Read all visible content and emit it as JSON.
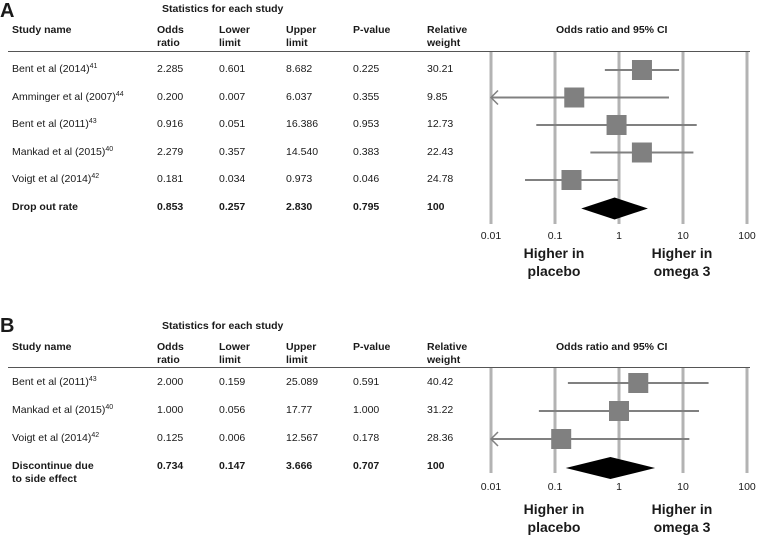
{
  "chart_data": [
    {
      "type": "forest",
      "panel": "A",
      "title": "Statistics for each study",
      "plot_title": "Odds ratio and 95% CI",
      "columns": [
        "Study name",
        "Odds\nratio",
        "Lower\nlimit",
        "Upper\nlimit",
        "P-value",
        "Relative\nweight"
      ],
      "studies": [
        {
          "name": "Bent et al (2014)",
          "ref": "41",
          "or": "2.285",
          "lower": "0.601",
          "upper": "8.682",
          "p": "0.225",
          "weight": "30.21",
          "or_v": 2.285,
          "lo_v": 0.601,
          "hi_v": 8.682
        },
        {
          "name": "Amminger et al (2007)",
          "ref": "44",
          "or": "0.200",
          "lower": "0.007",
          "upper": "6.037",
          "p": "0.355",
          "weight": "9.85",
          "or_v": 0.2,
          "lo_v": 0.007,
          "hi_v": 6.037
        },
        {
          "name": "Bent et al (2011)",
          "ref": "43",
          "or": "0.916",
          "lower": "0.051",
          "upper": "16.386",
          "p": "0.953",
          "weight": "12.73",
          "or_v": 0.916,
          "lo_v": 0.051,
          "hi_v": 16.386
        },
        {
          "name": "Mankad et al (2015)",
          "ref": "40",
          "or": "2.279",
          "lower": "0.357",
          "upper": "14.540",
          "p": "0.383",
          "weight": "22.43",
          "or_v": 2.279,
          "lo_v": 0.357,
          "hi_v": 14.54
        },
        {
          "name": "Voigt et al (2014)",
          "ref": "42",
          "or": "0.181",
          "lower": "0.034",
          "upper": "0.973",
          "p": "0.046",
          "weight": "24.78",
          "or_v": 0.181,
          "lo_v": 0.034,
          "hi_v": 0.973
        }
      ],
      "summary": {
        "name": "Drop out rate",
        "or": "0.853",
        "lower": "0.257",
        "upper": "2.830",
        "p": "0.795",
        "weight": "100",
        "or_v": 0.853,
        "lo_v": 0.257,
        "hi_v": 2.83
      },
      "x_scale": "log",
      "xlim": [
        0.01,
        100
      ],
      "x_ticks": [
        "0.01",
        "0.1",
        "1",
        "10",
        "100"
      ],
      "direction_left": "Higher in\nplacebo",
      "direction_right": "Higher in\nomega 3"
    },
    {
      "type": "forest",
      "panel": "B",
      "title": "Statistics for each study",
      "plot_title": "Odds ratio and 95% CI",
      "columns": [
        "Study name",
        "Odds\nratio",
        "Lower\nlimit",
        "Upper\nlimit",
        "P-value",
        "Relative\nweight"
      ],
      "studies": [
        {
          "name": "Bent et al (2011)",
          "ref": "43",
          "or": "2.000",
          "lower": "0.159",
          "upper": "25.089",
          "p": "0.591",
          "weight": "40.42",
          "or_v": 2.0,
          "lo_v": 0.159,
          "hi_v": 25.089
        },
        {
          "name": "Mankad et al (2015)",
          "ref": "40",
          "or": "1.000",
          "lower": "0.056",
          "upper": "17.77",
          "p": "1.000",
          "weight": "31.22",
          "or_v": 1.0,
          "lo_v": 0.056,
          "hi_v": 17.77
        },
        {
          "name": "Voigt et al (2014)",
          "ref": "42",
          "or": "0.125",
          "lower": "0.006",
          "upper": "12.567",
          "p": "0.178",
          "weight": "28.36",
          "or_v": 0.125,
          "lo_v": 0.006,
          "hi_v": 12.567
        }
      ],
      "summary": {
        "name": "Discontinue due\nto side effect",
        "or": "0.734",
        "lower": "0.147",
        "upper": "3.666",
        "p": "0.707",
        "weight": "100",
        "or_v": 0.734,
        "lo_v": 0.147,
        "hi_v": 3.666
      },
      "x_scale": "log",
      "xlim": [
        0.01,
        100
      ],
      "x_ticks": [
        "0.01",
        "0.1",
        "1",
        "10",
        "100"
      ],
      "direction_left": "Higher in\nplacebo",
      "direction_right": "Higher in\nomega 3"
    }
  ],
  "panel_letters": [
    "A",
    "B"
  ],
  "colors": {
    "marker": "#808080",
    "ci_line": "#808080",
    "gridline": "#b3b3b3",
    "diamond": "#000000",
    "text": "#1a1a1a"
  }
}
